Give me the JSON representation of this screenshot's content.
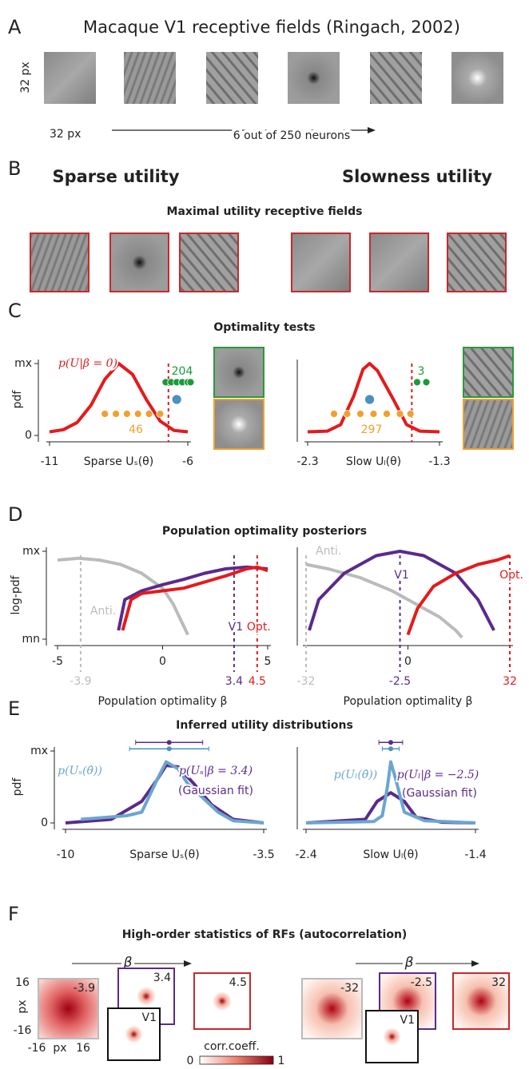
{
  "figure": {
    "panel_a": {
      "letter": "A",
      "title": "Macaque V1 receptive fields (Ringach, 2002)",
      "size_y": "32 px",
      "size_x": "32 px",
      "caption": "6 out of 250 neurons"
    },
    "panel_b": {
      "letter": "B",
      "left_title": "Sparse utility",
      "right_title": "Slowness utility",
      "subtitle": "Maximal utility receptive fields"
    },
    "panel_c": {
      "letter": "C",
      "title": "Optimality tests"
    },
    "panel_d": {
      "letter": "D",
      "title": "Population optimality posteriors"
    },
    "panel_e": {
      "letter": "E",
      "title": "Inferred utility distributions"
    },
    "panel_f": {
      "letter": "F",
      "title": "High-order statistics of RFs (autocorrelation)",
      "arrow_label": "β",
      "axis_ticks": [
        "16",
        "-16",
        "-16",
        "16"
      ],
      "axis_unit": "px",
      "left_labels": [
        "-3.9",
        "3.4",
        "4.5",
        "V1"
      ],
      "right_labels": [
        "-32",
        "-2.5",
        "32",
        "V1"
      ],
      "colorbar_label": "corr.coeff.",
      "colorbar_min": "0",
      "colorbar_max": "1"
    }
  },
  "chart_data": [
    {
      "type": "line",
      "ylabel": "pdf",
      "xlabel": "Sparse Uₛ(θ)",
      "xlim": [
        -11,
        -6
      ],
      "xticks": [
        -11,
        -6
      ],
      "ylim": [
        0,
        1
      ],
      "yticks": [
        0,
        {
          "value": 1,
          "label": "mx"
        }
      ],
      "threshold": -6.7,
      "series": [
        {
          "kind": "line",
          "color": "#e41a1c",
          "x": [
            -11,
            -10.5,
            -10,
            -9.5,
            -9,
            -8.5,
            -8,
            -7.5,
            -7,
            -6.5,
            -6
          ],
          "values": [
            0.05,
            0.08,
            0.18,
            0.42,
            0.78,
            1,
            0.85,
            0.5,
            0.2,
            0.07,
            0.05
          ]
        },
        {
          "kind": "scatter",
          "color": "#1a9a3a",
          "x": [
            -6.8,
            -6.6,
            -6.4,
            -6.2,
            -6.0,
            -5.9
          ],
          "values": [
            0.74,
            0.74,
            0.74,
            0.74,
            0.74,
            0.74
          ]
        },
        {
          "kind": "scatter",
          "color": "#f0a030",
          "x": [
            -9.0,
            -8.6,
            -8.2,
            -7.8,
            -7.4,
            -7.0
          ],
          "values": [
            0.3,
            0.3,
            0.3,
            0.3,
            0.3,
            0.3
          ]
        },
        {
          "kind": "scatter",
          "color": "#4a90c0",
          "x": [
            -6.4
          ],
          "values": [
            0.5
          ]
        }
      ],
      "annotations": [
        {
          "text": "p(U|β = 0)",
          "color": "#e41a1c"
        },
        {
          "text": "204",
          "color": "#1a9a3a"
        },
        {
          "text": "46",
          "color": "#f0a030"
        }
      ]
    },
    {
      "type": "line",
      "xlabel": "Slow Uₗ(θ)",
      "xlim": [
        -2.3,
        -1.3
      ],
      "xticks": [
        -2.3,
        -1.3
      ],
      "ylim": [
        0,
        1
      ],
      "threshold": -1.51,
      "series": [
        {
          "kind": "line",
          "color": "#e41a1c",
          "x": [
            -2.3,
            -2.15,
            -2.05,
            -1.95,
            -1.88,
            -1.83,
            -1.77,
            -1.65,
            -1.55,
            -1.45,
            -1.3
          ],
          "values": [
            0.05,
            0.06,
            0.15,
            0.55,
            0.92,
            1,
            0.9,
            0.5,
            0.15,
            0.06,
            0.05
          ]
        },
        {
          "kind": "scatter",
          "color": "#1a9a3a",
          "x": [
            -1.47,
            -1.4
          ],
          "values": [
            0.74,
            0.74
          ]
        },
        {
          "kind": "scatter",
          "color": "#f0a030",
          "x": [
            -2.1,
            -2.0,
            -1.9,
            -1.8,
            -1.7,
            -1.6,
            -1.52
          ],
          "values": [
            0.3,
            0.3,
            0.3,
            0.3,
            0.3,
            0.3,
            0.3
          ]
        },
        {
          "kind": "scatter",
          "color": "#4a90c0",
          "x": [
            -1.83
          ],
          "values": [
            0.5
          ]
        }
      ],
      "annotations": [
        {
          "text": "3",
          "color": "#1a9a3a"
        },
        {
          "text": "297",
          "color": "#f0a030"
        }
      ]
    },
    {
      "type": "line",
      "ylabel": "log-pdf",
      "xlabel": "Population optimality β",
      "xlim": [
        -5,
        5
      ],
      "xticks": [
        -5,
        0,
        5
      ],
      "ylim": [
        0,
        1
      ],
      "yticks": [
        {
          "value": 0,
          "label": "mn"
        },
        {
          "value": 1,
          "label": "mx"
        }
      ],
      "series": [
        {
          "kind": "line",
          "color": "#bbbbbb",
          "x": [
            -5,
            -4,
            -3,
            -2,
            -1,
            0,
            0.5,
            1.2
          ],
          "values": [
            0.9,
            0.92,
            0.9,
            0.85,
            0.75,
            0.58,
            0.4,
            0.05
          ]
        },
        {
          "kind": "line",
          "color": "#5b2a8c",
          "x": [
            -2.1,
            -1.8,
            -1,
            0,
            1,
            2,
            3,
            4,
            5
          ],
          "values": [
            0.1,
            0.45,
            0.55,
            0.62,
            0.68,
            0.75,
            0.8,
            0.82,
            0.8
          ]
        },
        {
          "kind": "line",
          "color": "#e41a1c",
          "x": [
            -1.9,
            -1.5,
            -1,
            0,
            1,
            2,
            3,
            4,
            4.5,
            5
          ],
          "values": [
            0.1,
            0.45,
            0.52,
            0.55,
            0.58,
            0.65,
            0.72,
            0.8,
            0.82,
            0.78
          ]
        }
      ],
      "markers": [
        {
          "value": -3.9,
          "color": "#bbbbbb",
          "label": "Anti."
        },
        {
          "value": 3.4,
          "color": "#5b2a8c",
          "label": "V1"
        },
        {
          "value": 4.5,
          "color": "#e41a1c",
          "label": "Opt."
        }
      ]
    },
    {
      "type": "line",
      "xlabel": "Population optimality β",
      "xlim": [
        -32,
        32
      ],
      "xticks": [
        0
      ],
      "ylim": [
        0,
        1
      ],
      "series": [
        {
          "kind": "line",
          "color": "#bbbbbb",
          "x": [
            -32,
            -25,
            -15,
            -5,
            0,
            10,
            15,
            17
          ],
          "values": [
            0.85,
            0.8,
            0.7,
            0.55,
            0.45,
            0.25,
            0.1,
            0.02
          ]
        },
        {
          "kind": "line",
          "color": "#5b2a8c",
          "x": [
            -31,
            -28,
            -20,
            -10,
            -2.5,
            5,
            15,
            22,
            27
          ],
          "values": [
            0.1,
            0.45,
            0.75,
            0.95,
            1,
            0.95,
            0.75,
            0.45,
            0.1
          ]
        },
        {
          "kind": "line",
          "color": "#e41a1c",
          "x": [
            0,
            3,
            8,
            15,
            22,
            28,
            32
          ],
          "values": [
            0.05,
            0.35,
            0.6,
            0.75,
            0.85,
            0.9,
            0.95
          ]
        }
      ],
      "markers": [
        {
          "value": -32,
          "color": "#bbbbbb",
          "label": "Anti."
        },
        {
          "value": -2.5,
          "color": "#5b2a8c",
          "label": "V1"
        },
        {
          "value": 32,
          "color": "#e41a1c",
          "label": "Opt."
        }
      ]
    },
    {
      "type": "line",
      "ylabel": "pdf",
      "xlabel": "Sparse Uₛ(θ)",
      "xlim": [
        -10,
        -3.5
      ],
      "xticks": [
        -10,
        -3.5
      ],
      "ylim": [
        0,
        1
      ],
      "yticks": [
        0,
        {
          "value": 1,
          "label": "mx"
        }
      ],
      "series": [
        {
          "kind": "line",
          "color": "#5b2a8c",
          "x": [
            -10,
            -8.5,
            -7.5,
            -7,
            -6.7,
            -6.3,
            -5.8,
            -5.2,
            -4.5,
            -3.5
          ],
          "values": [
            0,
            0.05,
            0.3,
            0.6,
            0.8,
            0.78,
            0.55,
            0.25,
            0.05,
            0
          ]
        },
        {
          "kind": "line",
          "color": "#6aa6cf",
          "x": [
            -9.5,
            -8,
            -7.5,
            -7,
            -6.7,
            -6.3,
            -6,
            -5.5,
            -5,
            -4.5,
            -3.5
          ],
          "values": [
            0.05,
            0.1,
            0.15,
            0.6,
            0.85,
            0.75,
            0.55,
            0.35,
            0.15,
            0.03,
            0
          ]
        }
      ],
      "error_bars": [
        {
          "color": "#5b2a8c",
          "value": -6.6,
          "error": 1.1,
          "y": 1.12
        },
        {
          "color": "#4a90c0",
          "value": -6.6,
          "error": 1.3,
          "y": 1.03
        }
      ],
      "annotations": [
        {
          "text": "p(Uₛ(θ̂))",
          "color": "#6aa6cf"
        },
        {
          "text": "p(Uₛ|β = 3.4)",
          "color": "#5b2a8c"
        },
        {
          "text": "(Gaussian fit)",
          "color": "#5b2a8c"
        }
      ]
    },
    {
      "type": "line",
      "xlabel": "Slow Uₗ(θ)",
      "xlim": [
        -2.4,
        -1.4
      ],
      "xticks": [
        -2.4,
        -1.4
      ],
      "ylim": [
        0,
        1
      ],
      "series": [
        {
          "kind": "line",
          "color": "#5b2a8c",
          "x": [
            -2.4,
            -2.05,
            -1.98,
            -1.9,
            -1.82,
            -1.75,
            -1.6,
            -1.4
          ],
          "values": [
            0,
            0.05,
            0.3,
            0.42,
            0.3,
            0.08,
            0.01,
            0
          ]
        },
        {
          "kind": "line",
          "color": "#6aa6cf",
          "x": [
            -2.4,
            -2.0,
            -1.95,
            -1.92,
            -1.9,
            -1.87,
            -1.82,
            -1.7,
            -1.4
          ],
          "values": [
            0,
            0.02,
            0.1,
            0.5,
            0.85,
            0.6,
            0.15,
            0.03,
            0
          ]
        }
      ],
      "error_bars": [
        {
          "color": "#5b2a8c",
          "value": -1.9,
          "error": 0.07,
          "y": 1.12
        },
        {
          "color": "#4a90c0",
          "value": -1.9,
          "error": 0.05,
          "y": 1.03
        }
      ],
      "annotations": [
        {
          "text": "p(Uₗ(θ̂))",
          "color": "#6aa6cf"
        },
        {
          "text": "p(Uₗ|β = −2.5)",
          "color": "#5b2a8c"
        },
        {
          "text": "(Gaussian fit)",
          "color": "#5b2a8c"
        }
      ]
    }
  ]
}
